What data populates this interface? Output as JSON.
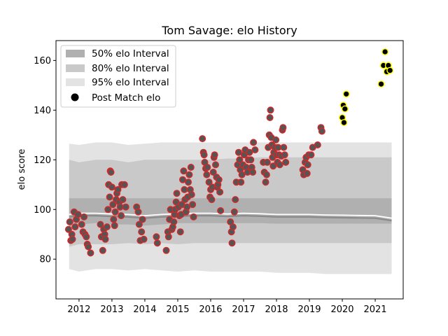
{
  "chart_data": {
    "type": "scatter",
    "title": "Tom Savage: elo History",
    "xlabel": "",
    "ylabel": "elo score",
    "xlim": [
      2011.3,
      2021.85
    ],
    "ylim": [
      64,
      168
    ],
    "x_ticks": [
      2012,
      2013,
      2014,
      2015,
      2016,
      2017,
      2018,
      2019,
      2020,
      2021
    ],
    "y_ticks": [
      80,
      100,
      120,
      140,
      160
    ],
    "legend": {
      "placement": "top-left",
      "entries": [
        "50% elo Interval",
        "80% elo Interval",
        "95% elo Interval",
        "Post Match elo"
      ]
    },
    "bands": {
      "x": [
        2011.7,
        2012.0,
        2012.5,
        2013.0,
        2013.5,
        2014.0,
        2014.5,
        2015.0,
        2015.5,
        2016.0,
        2016.5,
        2017.0,
        2017.5,
        2018.0,
        2018.5,
        2019.0,
        2019.5,
        2020.0,
        2020.5,
        2021.0,
        2021.5
      ],
      "median": [
        97,
        97.5,
        97.5,
        97.2,
        97,
        96.5,
        97,
        97.3,
        97.5,
        97.5,
        97.2,
        97.5,
        97.3,
        97,
        97,
        97,
        96.8,
        96.7,
        96.6,
        96.5,
        95.5
      ],
      "p25": [
        93,
        94,
        94.5,
        94,
        94,
        93.5,
        94,
        94.5,
        94.5,
        94.5,
        94.5,
        94.5,
        94.5,
        94.3,
        94.3,
        94.3,
        94.3,
        94.3,
        94.3,
        94.3,
        94.3
      ],
      "p75": [
        104.5,
        104.5,
        104.5,
        104.5,
        104.5,
        104.5,
        104.5,
        104.5,
        104.5,
        104.5,
        104.5,
        104.5,
        104.5,
        104.5,
        104.5,
        104.5,
        104.5,
        104.5,
        104.5,
        104.5,
        104.5
      ],
      "p10": [
        85,
        86,
        86,
        86,
        86.5,
        86,
        86.5,
        86,
        86.5,
        86.5,
        86.5,
        86.5,
        86.5,
        86.5,
        86.5,
        86.5,
        86.5,
        86.5,
        86.5,
        86.5,
        86.5
      ],
      "p90": [
        120,
        119,
        120,
        120,
        119,
        120,
        120,
        120,
        120,
        120,
        120.5,
        120.5,
        121,
        121,
        121,
        121,
        121,
        121,
        121,
        121,
        121
      ],
      "p025": [
        76,
        75,
        76,
        76,
        75.5,
        76,
        75.5,
        75,
        75.5,
        75,
        75,
        75,
        75,
        74.5,
        74.5,
        74.5,
        74,
        74,
        74,
        74,
        74
      ],
      "p975": [
        126.5,
        126,
        127,
        127,
        126,
        126.5,
        127,
        127,
        127,
        127,
        127,
        127,
        127,
        127,
        127,
        127,
        127,
        127,
        127,
        127,
        127
      ]
    },
    "series": [
      {
        "name": "Post Match elo",
        "points": [
          [
            2011.68,
            92
          ],
          [
            2011.72,
            95
          ],
          [
            2011.75,
            87.5
          ],
          [
            2011.78,
            90
          ],
          [
            2011.8,
            88
          ],
          [
            2011.85,
            99
          ],
          [
            2011.88,
            93
          ],
          [
            2011.92,
            96
          ],
          [
            2011.97,
            98
          ],
          [
            2012.08,
            94
          ],
          [
            2012.12,
            91
          ],
          [
            2012.15,
            97
          ],
          [
            2012.18,
            90
          ],
          [
            2012.22,
            89
          ],
          [
            2012.25,
            86
          ],
          [
            2012.28,
            85
          ],
          [
            2012.35,
            82.5
          ],
          [
            2012.65,
            94
          ],
          [
            2012.68,
            89
          ],
          [
            2012.72,
            83.5
          ],
          [
            2012.75,
            92
          ],
          [
            2012.78,
            90
          ],
          [
            2012.8,
            88
          ],
          [
            2012.85,
            93
          ],
          [
            2012.88,
            100
          ],
          [
            2012.9,
            110
          ],
          [
            2012.93,
            105
          ],
          [
            2012.95,
            115.5
          ],
          [
            2012.97,
            115
          ],
          [
            2013.0,
            109
          ],
          [
            2013.03,
            102
          ],
          [
            2013.05,
            96
          ],
          [
            2013.08,
            93.5
          ],
          [
            2013.1,
            99
          ],
          [
            2013.13,
            104
          ],
          [
            2013.15,
            106.5
          ],
          [
            2013.18,
            108
          ],
          [
            2013.22,
            103
          ],
          [
            2013.25,
            101
          ],
          [
            2013.28,
            97.5
          ],
          [
            2013.3,
            110
          ],
          [
            2013.33,
            104
          ],
          [
            2013.38,
            110
          ],
          [
            2013.42,
            101
          ],
          [
            2013.75,
            101
          ],
          [
            2013.8,
            99
          ],
          [
            2013.83,
            94
          ],
          [
            2013.86,
            87.5
          ],
          [
            2013.9,
            91
          ],
          [
            2013.93,
            96
          ],
          [
            2013.97,
            88
          ],
          [
            2014.35,
            89
          ],
          [
            2014.38,
            86.5
          ],
          [
            2014.65,
            83.5
          ],
          [
            2014.7,
            91
          ],
          [
            2014.72,
            89
          ],
          [
            2014.75,
            96
          ],
          [
            2014.78,
            100
          ],
          [
            2014.82,
            92
          ],
          [
            2014.85,
            93
          ],
          [
            2014.88,
            95
          ],
          [
            2014.9,
            98
          ],
          [
            2014.92,
            100
          ],
          [
            2014.95,
            103
          ],
          [
            2014.97,
            106.5
          ],
          [
            2015.02,
            101
          ],
          [
            2015.05,
            97.5
          ],
          [
            2015.08,
            91
          ],
          [
            2015.1,
            98
          ],
          [
            2015.12,
            102
          ],
          [
            2015.15,
            112
          ],
          [
            2015.18,
            115.5
          ],
          [
            2015.2,
            108
          ],
          [
            2015.22,
            104
          ],
          [
            2015.25,
            99
          ],
          [
            2015.28,
            101
          ],
          [
            2015.3,
            105
          ],
          [
            2015.32,
            111
          ],
          [
            2015.35,
            114
          ],
          [
            2015.38,
            108
          ],
          [
            2015.4,
            117
          ],
          [
            2015.42,
            106
          ],
          [
            2015.45,
            102
          ],
          [
            2015.48,
            97
          ],
          [
            2015.75,
            128.5
          ],
          [
            2015.78,
            123
          ],
          [
            2015.8,
            122
          ],
          [
            2015.82,
            119
          ],
          [
            2015.85,
            116.5
          ],
          [
            2015.88,
            114
          ],
          [
            2015.9,
            117
          ],
          [
            2015.95,
            111
          ],
          [
            2015.98,
            105
          ],
          [
            2016.0,
            108
          ],
          [
            2016.03,
            104
          ],
          [
            2016.05,
            109
          ],
          [
            2016.08,
            115
          ],
          [
            2016.1,
            121
          ],
          [
            2016.12,
            122
          ],
          [
            2016.15,
            118
          ],
          [
            2016.18,
            113
          ],
          [
            2016.2,
            109
          ],
          [
            2016.22,
            110
          ],
          [
            2016.25,
            112
          ],
          [
            2016.28,
            107
          ],
          [
            2016.3,
            99.5
          ],
          [
            2016.6,
            95
          ],
          [
            2016.63,
            91
          ],
          [
            2016.65,
            86.5
          ],
          [
            2016.68,
            93
          ],
          [
            2016.72,
            99
          ],
          [
            2016.75,
            104
          ],
          [
            2016.78,
            111
          ],
          [
            2016.82,
            118
          ],
          [
            2016.85,
            123
          ],
          [
            2016.88,
            120
          ],
          [
            2016.9,
            116
          ],
          [
            2016.92,
            111
          ],
          [
            2016.95,
            114
          ],
          [
            2016.98,
            118
          ],
          [
            2017.02,
            122
          ],
          [
            2017.05,
            124
          ],
          [
            2017.08,
            117
          ],
          [
            2017.12,
            115
          ],
          [
            2017.15,
            120
          ],
          [
            2017.18,
            123
          ],
          [
            2017.22,
            120
          ],
          [
            2017.25,
            117
          ],
          [
            2017.28,
            115
          ],
          [
            2017.3,
            127
          ],
          [
            2017.35,
            124
          ],
          [
            2017.6,
            119
          ],
          [
            2017.63,
            115
          ],
          [
            2017.67,
            111
          ],
          [
            2017.7,
            114
          ],
          [
            2017.72,
            119
          ],
          [
            2017.75,
            125
          ],
          [
            2017.78,
            130
          ],
          [
            2017.8,
            137
          ],
          [
            2017.82,
            140
          ],
          [
            2017.84,
            129
          ],
          [
            2017.86,
            126
          ],
          [
            2017.88,
            121
          ],
          [
            2017.9,
            117.5
          ],
          [
            2017.92,
            123
          ],
          [
            2017.95,
            125
          ],
          [
            2017.98,
            128
          ],
          [
            2018.0,
            122
          ],
          [
            2018.03,
            119
          ],
          [
            2018.05,
            125
          ],
          [
            2018.08,
            122
          ],
          [
            2018.1,
            118
          ],
          [
            2018.15,
            121.5
          ],
          [
            2018.18,
            132
          ],
          [
            2018.2,
            133
          ],
          [
            2018.22,
            125
          ],
          [
            2018.25,
            122
          ],
          [
            2018.28,
            119
          ],
          [
            2018.8,
            116
          ],
          [
            2018.83,
            114
          ],
          [
            2018.87,
            119
          ],
          [
            2018.9,
            121
          ],
          [
            2018.93,
            114.5
          ],
          [
            2018.95,
            118
          ],
          [
            2018.98,
            122
          ],
          [
            2019.05,
            122
          ],
          [
            2019.1,
            125
          ],
          [
            2019.25,
            126
          ],
          [
            2019.35,
            133
          ],
          [
            2019.38,
            131.5
          ]
        ]
      },
      {
        "name": "Post Match elo (recent)",
        "points": [
          [
            2020.0,
            137
          ],
          [
            2020.03,
            142
          ],
          [
            2020.05,
            135
          ],
          [
            2020.08,
            140.5
          ],
          [
            2020.12,
            146.5
          ],
          [
            2021.18,
            150.5
          ],
          [
            2021.25,
            158
          ],
          [
            2021.3,
            163.5
          ],
          [
            2021.35,
            155.5
          ],
          [
            2021.4,
            158
          ],
          [
            2021.45,
            156
          ]
        ]
      }
    ],
    "colors": {
      "band_50": "#b0b0b0",
      "band_80": "#c9c9c9",
      "band_95": "#e3e3e3",
      "median_line": "#8a8a8a",
      "mean_line": "#ffffff",
      "point_fill": "#555555",
      "point_edge": "#d62728",
      "recent_fill": "#000000",
      "recent_edge": "#ffff00"
    }
  }
}
